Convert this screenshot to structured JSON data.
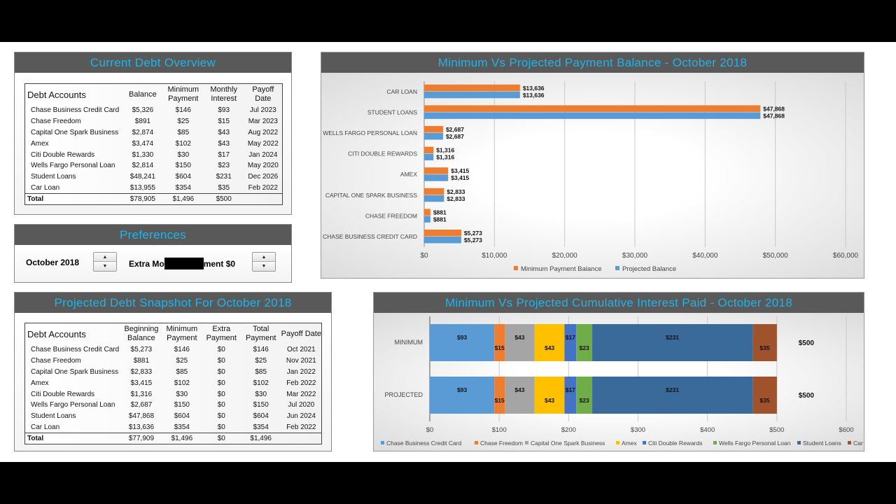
{
  "overview": {
    "title": "Current Debt Overview",
    "headers": [
      "Debt Accounts",
      "Balance",
      "Minimum Payment",
      "Monthly Interest",
      "Payoff Date"
    ],
    "rows": [
      [
        "Chase Business Credit Card",
        "$5,326",
        "$146",
        "$93",
        "Jul 2023"
      ],
      [
        "Chase Freedom",
        "$891",
        "$25",
        "$15",
        "Mar 2023"
      ],
      [
        "Capital One Spark Business",
        "$2,874",
        "$85",
        "$43",
        "Aug 2022"
      ],
      [
        "Amex",
        "$3,474",
        "$102",
        "$43",
        "May 2022"
      ],
      [
        "Citi Double Rewards",
        "$1,330",
        "$30",
        "$17",
        "Jan 2024"
      ],
      [
        "Wells Fargo Personal Loan",
        "$2,814",
        "$150",
        "$23",
        "May 2020"
      ],
      [
        "Student Loans",
        "$48,241",
        "$604",
        "$231",
        "Dec 2026"
      ],
      [
        "Car Loan",
        "$13,955",
        "$354",
        "$35",
        "Feb 2022"
      ]
    ],
    "total": [
      "Total",
      "$78,905",
      "$1,496",
      "$500",
      ""
    ]
  },
  "preferences": {
    "title": "Preferences",
    "month": "October 2018",
    "extra_prefix": "Extra Mo",
    "extra_suffix": "ment $0",
    "up": "▲",
    "down": "▼"
  },
  "snapshot": {
    "title": "Projected Debt Snapshot For October 2018",
    "headers": [
      "Debt Accounts",
      "Beginning Balance",
      "Minimum Payment",
      "Extra Payment",
      "Total Payment",
      "Payoff Date"
    ],
    "rows": [
      [
        "Chase Business Credit Card",
        "$5,273",
        "$146",
        "$0",
        "$146",
        "Oct 2021"
      ],
      [
        "Chase Freedom",
        "$881",
        "$25",
        "$0",
        "$25",
        "Nov 2021"
      ],
      [
        "Capital One Spark Business",
        "$2,833",
        "$85",
        "$0",
        "$85",
        "Jan 2022"
      ],
      [
        "Amex",
        "$3,415",
        "$102",
        "$0",
        "$102",
        "Feb 2022"
      ],
      [
        "Citi Double Rewards",
        "$1,316",
        "$30",
        "$0",
        "$30",
        "Mar 2022"
      ],
      [
        "Wells Fargo Personal Loan",
        "$2,687",
        "$150",
        "$0",
        "$150",
        "Jul 2020"
      ],
      [
        "Student Loans",
        "$47,868",
        "$604",
        "$0",
        "$604",
        "Jun 2024"
      ],
      [
        "Car Loan",
        "$13,636",
        "$354",
        "$0",
        "$354",
        "Feb 2022"
      ]
    ],
    "total": [
      "Total",
      "$77,909",
      "$1,496",
      "$0",
      "$1,496",
      ""
    ]
  },
  "chart_data": [
    {
      "type": "bar",
      "orientation": "horizontal",
      "title": "Minimum Vs Projected Payment Balance - October 2018",
      "categories": [
        "CAR LOAN",
        "STUDENT LOANS",
        "WELLS FARGO PERSONAL LOAN",
        "CITI DOUBLE REWARDS",
        "AMEX",
        "CAPITAL ONE SPARK BUSINESS",
        "CHASE FREEDOM",
        "CHASE BUSINESS CREDIT CARD"
      ],
      "series": [
        {
          "name": "Minimum Payment Balance",
          "color": "#ED7D31",
          "values": [
            13636,
            47868,
            2687,
            1316,
            3415,
            2833,
            881,
            5273
          ],
          "labels": [
            "$13,636",
            "$47,868",
            "$2,687",
            "$1,316",
            "$3,415",
            "$2,833",
            "$881",
            "$5,273"
          ]
        },
        {
          "name": "Projected Balance",
          "color": "#5B9BD5",
          "values": [
            13636,
            47868,
            2687,
            1316,
            3415,
            2833,
            881,
            5273
          ],
          "labels": [
            "$13,636",
            "$47,868",
            "$2,687",
            "$1,316",
            "$3,415",
            "$2,833",
            "$881",
            "$5,273"
          ]
        }
      ],
      "xlim": [
        0,
        60000
      ],
      "xticks": [
        "$0",
        "$10,000",
        "$20,000",
        "$30,000",
        "$40,000",
        "$50,000",
        "$60,000"
      ],
      "grid": true,
      "legend": "bottom"
    },
    {
      "type": "bar",
      "orientation": "horizontal",
      "stacked": true,
      "title": "Minimum Vs Projected Cumulative Interest Paid - October 2018",
      "categories": [
        "MINIMUM",
        "PROJECTED"
      ],
      "totals": [
        "$500",
        "$500"
      ],
      "series": [
        {
          "name": "Chase Business Credit Card",
          "color": "#5B9BD5",
          "values": [
            93,
            93
          ]
        },
        {
          "name": "Chase Freedom",
          "color": "#ED7D31",
          "values": [
            15,
            15
          ]
        },
        {
          "name": "Capital One Spark Business",
          "color": "#A5A5A5",
          "values": [
            43,
            43
          ]
        },
        {
          "name": "Amex",
          "color": "#FFC000",
          "values": [
            43,
            43
          ]
        },
        {
          "name": "Citi Double Rewards",
          "color": "#4472C4",
          "values": [
            17,
            17
          ]
        },
        {
          "name": "Wells Fargo Personal Loan",
          "color": "#70AD47",
          "values": [
            23,
            23
          ]
        },
        {
          "name": "Student Loans",
          "color": "#3A6A9A",
          "values": [
            231,
            231
          ]
        },
        {
          "name": "Car Loan",
          "color": "#A0522D",
          "values": [
            35,
            35
          ]
        }
      ],
      "xlim": [
        0,
        600
      ],
      "xticks": [
        "$0",
        "$100",
        "$200",
        "$300",
        "$400",
        "$500",
        "$600"
      ],
      "grid": true,
      "legend": "bottom"
    }
  ]
}
